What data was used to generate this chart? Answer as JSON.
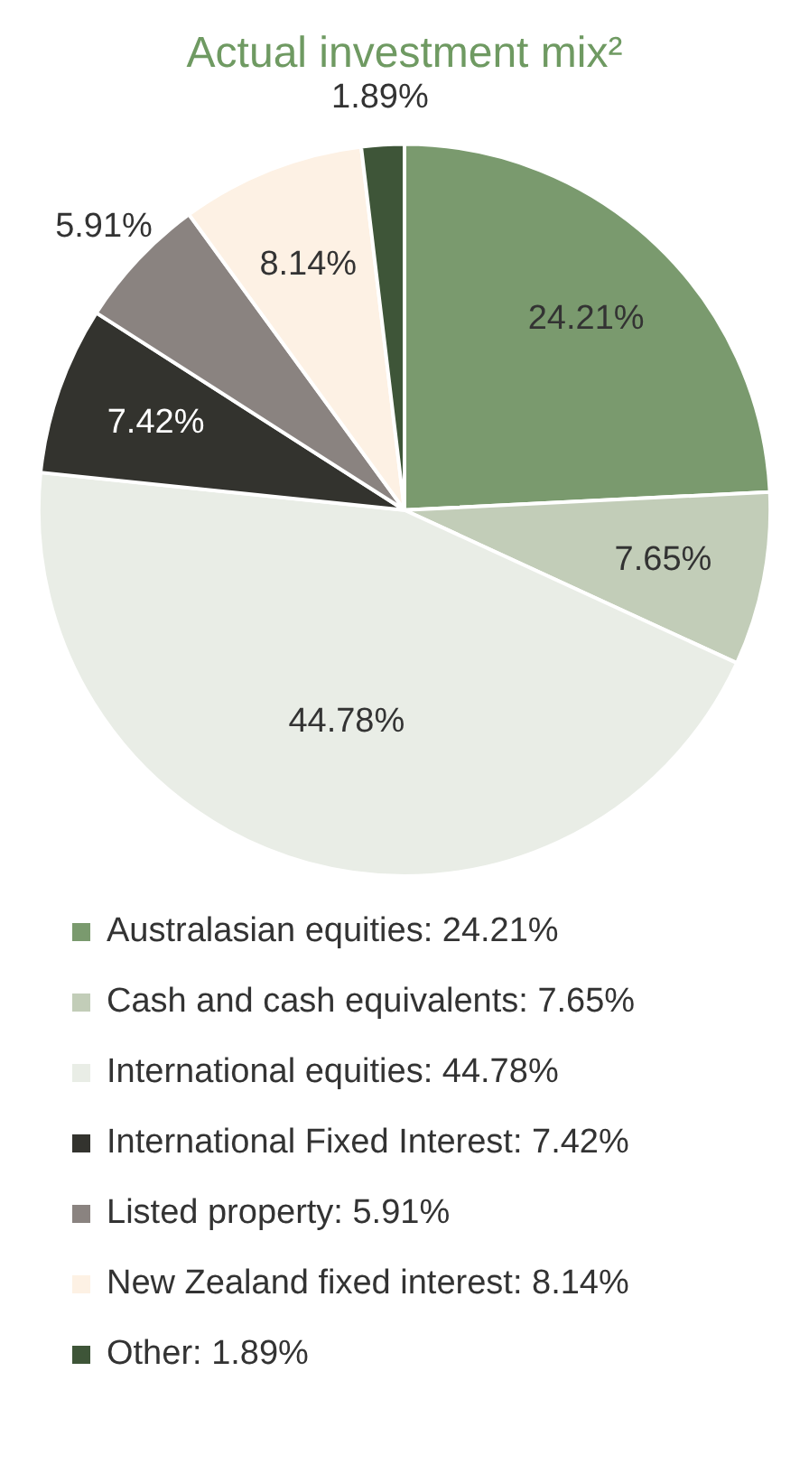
{
  "chart_data": {
    "type": "pie",
    "title": "Actual investment mix²",
    "categories": [
      "Australasian equities",
      "Cash and cash equivalents",
      "International equities",
      "International Fixed Interest",
      "Listed property",
      "New Zealand fixed interest",
      "Other"
    ],
    "values": [
      24.21,
      7.65,
      44.78,
      7.42,
      5.91,
      8.14,
      1.89
    ],
    "value_labels": [
      "24.21%",
      "7.65%",
      "44.78%",
      "7.42%",
      "5.91%",
      "8.14%",
      "1.89%"
    ],
    "colors": [
      "#7a9a6e",
      "#c2cdb8",
      "#e9ede6",
      "#33332e",
      "#8a8380",
      "#fdf1e4",
      "#3e5538"
    ],
    "legend": "bottom"
  }
}
